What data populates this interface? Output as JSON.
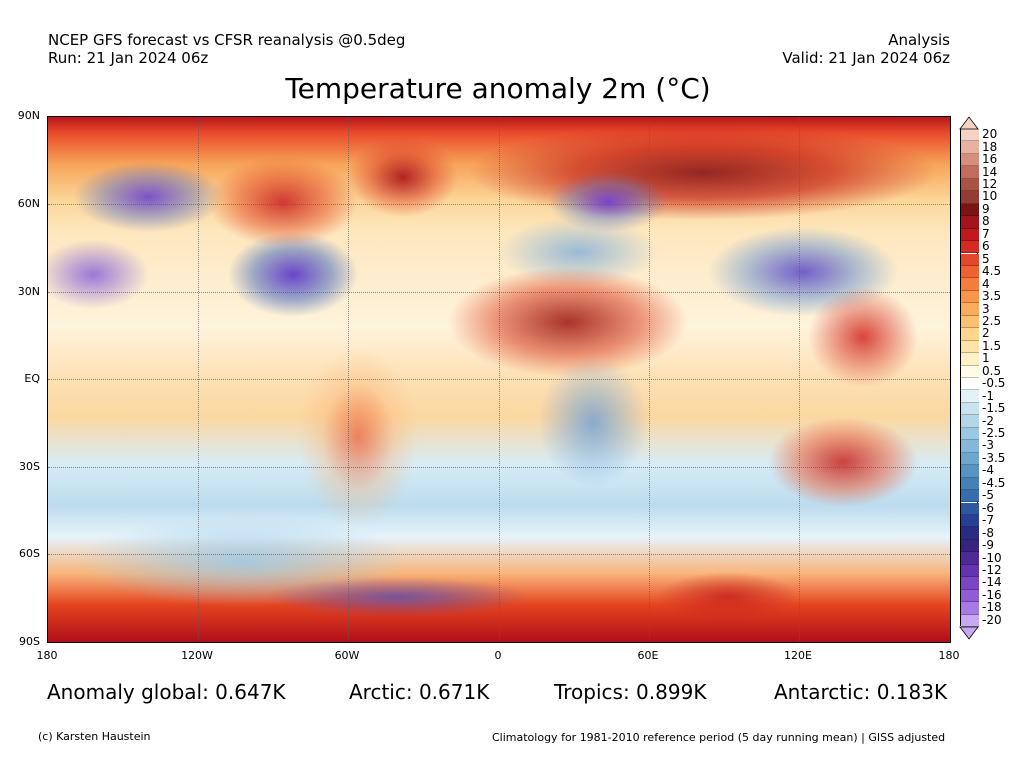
{
  "header": {
    "line1_left": "NCEP GFS forecast vs CFSR reanalysis @0.5deg",
    "line2_left": "Run: 21 Jan 2024 06z",
    "line1_right": "Analysis",
    "line2_right": "Valid: 21 Jan 2024 06z"
  },
  "title": "Temperature anomaly 2m (°C)",
  "map": {
    "y_labels": [
      "90N",
      "60N",
      "30N",
      "EQ",
      "30S",
      "60S",
      "90S"
    ],
    "x_labels": [
      "180",
      "120W",
      "60W",
      "0",
      "60E",
      "120E",
      "180"
    ],
    "colors": {
      "very_warm": "#8e1f1f",
      "warm": "#e84a2a",
      "mild": "#f7a45a",
      "neutral": "#fff3dc",
      "cool": "#bcdcee",
      "cold": "#3d67b3",
      "very_cold": "#6a3fc9"
    }
  },
  "colorbar": {
    "labels": [
      "20",
      "18",
      "16",
      "14",
      "12",
      "10",
      "9",
      "8",
      "7",
      "6",
      "5",
      "4.5",
      "4",
      "3.5",
      "3",
      "2.5",
      "2",
      "1.5",
      "1",
      "0.5",
      "-0.5",
      "-1",
      "-1.5",
      "-2",
      "-2.5",
      "-3",
      "-3.5",
      "-4",
      "-4.5",
      "-5",
      "-6",
      "-7",
      "-8",
      "-9",
      "-10",
      "-12",
      "-14",
      "-16",
      "-18",
      "-20"
    ],
    "colors": [
      "#f6d2c3",
      "#e7b3a0",
      "#d58f7c",
      "#c06d5d",
      "#a95346",
      "#923c33",
      "#7a1514",
      "#a3151b",
      "#c0191e",
      "#d42c24",
      "#e5472c",
      "#ef6233",
      "#f57c3d",
      "#f8944b",
      "#fbab5c",
      "#fdc073",
      "#fed68e",
      "#fee4a8",
      "#fff0c6",
      "#fffbe9",
      "#ffffff",
      "#e3f1f9",
      "#c9e3f1",
      "#b2d6ea",
      "#9ac7e1",
      "#83b8d8",
      "#6ca7ce",
      "#5794c4",
      "#4680b9",
      "#386caf",
      "#2e57a3",
      "#283f94",
      "#2a2c84",
      "#3a237f",
      "#4f2a97",
      "#6533b0",
      "#7a46c5",
      "#8f5bd7",
      "#a77ae4",
      "#c7a9f1"
    ]
  },
  "stats": {
    "global": "Anomaly global: 0.647K",
    "arctic": "Arctic: 0.671K",
    "tropics": "Tropics: 0.899K",
    "antarctic": "Antarctic: 0.183K"
  },
  "footer": {
    "left": "(c) Karsten Haustein",
    "right": "Climatology for 1981-2010 reference period (5 day running mean) | GISS adjusted"
  }
}
